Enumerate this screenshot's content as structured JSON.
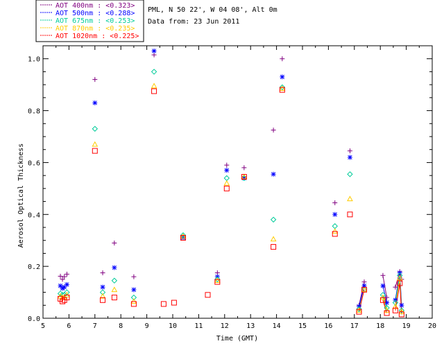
{
  "chart_data": {
    "type": "scatter",
    "header": {
      "site": "PML, N 50 22', W 04 08', Alt 0m",
      "date": "Data from: 23 Jun 2011"
    },
    "xlabel": "Time (GMT)",
    "ylabel": "Aerosol Optical Thickness",
    "xlim": [
      5,
      20
    ],
    "ylim": [
      0,
      1.05
    ],
    "x_ticks": [
      "5",
      "6",
      "7",
      "8",
      "9",
      "10",
      "11",
      "12",
      "13",
      "14",
      "15",
      "16",
      "17",
      "18",
      "19",
      "20"
    ],
    "y_ticks": [
      "0.0",
      "0.2",
      "0.4",
      "0.6",
      "0.8",
      "1.0"
    ],
    "series": [
      {
        "name": "AOT 400nm",
        "legend": "AOT  400nm : <0.323>",
        "color": "#800080",
        "marker": "plus",
        "x": [
          5.67,
          5.75,
          5.82,
          5.92,
          7.0,
          7.3,
          7.75,
          8.5,
          9.28,
          10.4,
          11.72,
          12.08,
          12.75,
          13.88,
          14.22,
          16.25,
          16.83,
          17.18,
          17.38,
          18.1,
          18.25,
          18.58,
          18.75,
          18.82
        ],
        "y": [
          0.162,
          0.15,
          0.16,
          0.17,
          0.92,
          0.175,
          0.29,
          0.16,
          1.015,
          0.315,
          0.175,
          0.59,
          0.58,
          0.725,
          1.0,
          0.445,
          0.645,
          0.05,
          0.14,
          0.165,
          0.08,
          0.12,
          0.18,
          0.15
        ]
      },
      {
        "name": "AOT 500nm",
        "legend": "AOT  500nm : <0.288>",
        "color": "#0000ff",
        "marker": "asterisk",
        "x": [
          5.67,
          5.75,
          5.82,
          5.92,
          7.0,
          7.3,
          7.75,
          8.5,
          9.28,
          10.4,
          11.72,
          12.08,
          12.75,
          13.88,
          14.22,
          16.25,
          16.83,
          17.18,
          17.38,
          18.1,
          18.25,
          18.58,
          18.75,
          18.82
        ],
        "y": [
          0.125,
          0.115,
          0.12,
          0.13,
          0.83,
          0.12,
          0.195,
          0.11,
          1.03,
          0.31,
          0.16,
          0.57,
          0.54,
          0.555,
          0.93,
          0.4,
          0.62,
          0.045,
          0.125,
          0.125,
          0.06,
          0.07,
          0.175,
          0.05
        ]
      },
      {
        "name": "AOT 675nm",
        "legend": "AOT  675nm : <0.253>",
        "color": "#00cc99",
        "marker": "diamond",
        "x": [
          5.67,
          5.75,
          5.82,
          5.92,
          7.0,
          7.3,
          7.75,
          8.5,
          9.28,
          10.4,
          11.72,
          12.08,
          12.75,
          13.88,
          14.22,
          16.25,
          16.83,
          17.18,
          17.38,
          18.1,
          18.25,
          18.58,
          18.75,
          18.82
        ],
        "y": [
          0.095,
          0.09,
          0.09,
          0.1,
          0.73,
          0.1,
          0.145,
          0.08,
          0.95,
          0.32,
          0.15,
          0.54,
          0.54,
          0.38,
          0.89,
          0.355,
          0.555,
          0.035,
          0.11,
          0.09,
          0.04,
          0.06,
          0.165,
          0.03
        ]
      },
      {
        "name": "AOT 870nm",
        "legend": "AOT  870nm : <0.235>",
        "color": "#ffcc00",
        "marker": "triangle",
        "x": [
          5.67,
          5.75,
          5.82,
          5.92,
          7.0,
          7.3,
          7.75,
          8.5,
          9.28,
          10.4,
          11.72,
          12.08,
          12.75,
          13.88,
          14.22,
          16.25,
          16.83,
          17.18,
          17.38,
          18.1,
          18.25,
          18.58,
          18.75,
          18.82
        ],
        "y": [
          0.085,
          0.08,
          0.08,
          0.09,
          0.67,
          0.085,
          0.11,
          0.065,
          0.895,
          0.315,
          0.145,
          0.52,
          0.545,
          0.305,
          0.885,
          0.335,
          0.46,
          0.03,
          0.11,
          0.08,
          0.03,
          0.045,
          0.155,
          0.025
        ]
      },
      {
        "name": "AOT 1020nm",
        "legend": "AOT 1020nm : <0.225>",
        "color": "#ff0000",
        "marker": "square",
        "x": [
          5.67,
          5.75,
          5.82,
          5.92,
          7.0,
          7.3,
          7.75,
          8.5,
          9.28,
          9.65,
          10.05,
          10.4,
          11.35,
          11.72,
          12.08,
          12.75,
          13.88,
          14.22,
          16.25,
          16.83,
          17.18,
          17.38,
          18.1,
          18.25,
          18.58,
          18.75,
          18.82
        ],
        "y": [
          0.075,
          0.065,
          0.07,
          0.08,
          0.645,
          0.07,
          0.08,
          0.055,
          0.875,
          0.055,
          0.06,
          0.31,
          0.09,
          0.14,
          0.5,
          0.545,
          0.275,
          0.88,
          0.325,
          0.4,
          0.025,
          0.11,
          0.07,
          0.02,
          0.03,
          0.135,
          0.015
        ]
      }
    ]
  }
}
